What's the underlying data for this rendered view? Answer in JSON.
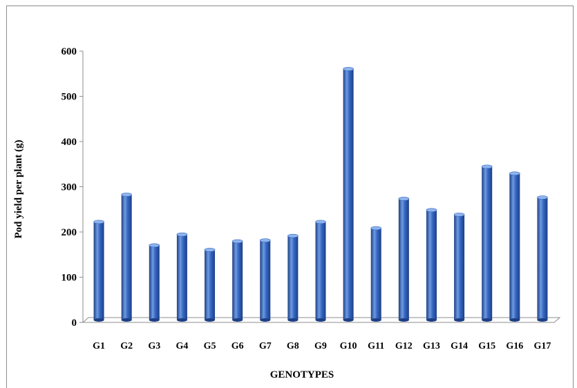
{
  "chart_data": {
    "type": "bar",
    "style": "3d-cylinder",
    "categories": [
      "G1",
      "G2",
      "G3",
      "G4",
      "G5",
      "G6",
      "G7",
      "G8",
      "G9",
      "G10",
      "G11",
      "G12",
      "G13",
      "G14",
      "G15",
      "G16",
      "G17"
    ],
    "values": [
      217,
      277,
      165,
      189,
      155,
      174,
      176,
      186,
      217,
      555,
      203,
      268,
      243,
      233,
      339,
      324,
      271
    ],
    "xlabel": "GENOTYPES",
    "ylabel": "Pod yield per plant (g)",
    "ylim": [
      0,
      600
    ],
    "yticks": [
      0,
      100,
      200,
      300,
      400,
      500,
      600
    ],
    "ytick_labels": [
      "0",
      "100",
      "200",
      "300",
      "400",
      "500",
      "600"
    ],
    "grid": false,
    "legend": "none",
    "colors": {
      "bar_light": "#6e9be0",
      "bar_mid": "#3567c4",
      "bar_dark": "#1d3f85",
      "bar_top": "#8fb4ec",
      "axis": "#8c8c8c"
    }
  }
}
